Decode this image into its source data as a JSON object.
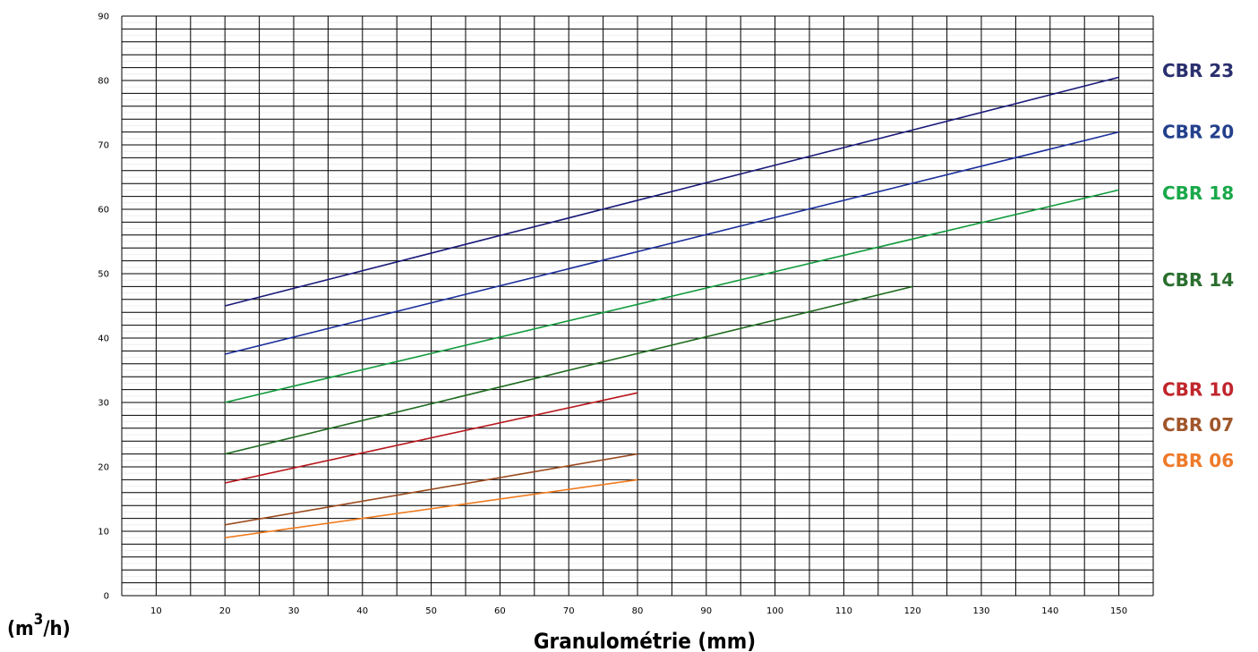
{
  "chart_data": {
    "type": "line",
    "xlabel": "Granulométrie (mm)",
    "ylabel": "m",
    "ylabel_sup": "3",
    "ylabel_rest": "/h)",
    "ylabel_open": "(",
    "x_ticks": [
      10,
      20,
      30,
      40,
      50,
      60,
      70,
      80,
      90,
      100,
      110,
      120,
      130,
      140,
      150
    ],
    "y_ticks": [
      0,
      10,
      20,
      30,
      40,
      50,
      60,
      70,
      80,
      90
    ],
    "xlim": [
      5,
      155
    ],
    "ylim": [
      0,
      90
    ],
    "grid": true,
    "series": [
      {
        "name": "CBR 23",
        "color": "#1a1a7a",
        "label_color": "#2a2f6e",
        "label_y": 81.5,
        "x": [
          20,
          150
        ],
        "y": [
          45,
          80.5
        ]
      },
      {
        "name": "CBR 20",
        "color": "#1c2f9c",
        "label_color": "#23408c",
        "label_y": 72.0,
        "x": [
          20,
          150
        ],
        "y": [
          37.5,
          72
        ]
      },
      {
        "name": "CBR 18",
        "color": "#119b3c",
        "label_color": "#1aa84a",
        "label_y": 62.5,
        "x": [
          20,
          150
        ],
        "y": [
          30,
          63
        ]
      },
      {
        "name": "CBR 14",
        "color": "#1e6b1e",
        "label_color": "#2a6e2e",
        "label_y": 49.0,
        "x": [
          20,
          120
        ],
        "y": [
          22,
          48
        ]
      },
      {
        "name": "CBR 10",
        "color": "#b8161c",
        "label_color": "#c0262c",
        "label_y": 32.0,
        "x": [
          20,
          80
        ],
        "y": [
          17.5,
          31.5
        ]
      },
      {
        "name": "CBR 07",
        "color": "#9b4a1e",
        "label_color": "#a0562a",
        "label_y": 26.5,
        "x": [
          20,
          80
        ],
        "y": [
          11,
          22
        ]
      },
      {
        "name": "CBR 06",
        "color": "#f07b1e",
        "label_color": "#ee7a2a",
        "label_y": 21.0,
        "x": [
          20,
          80
        ],
        "y": [
          9,
          18
        ]
      }
    ]
  }
}
